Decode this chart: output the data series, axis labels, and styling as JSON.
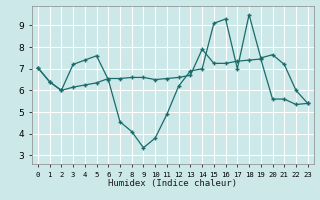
{
  "xlabel": "Humidex (Indice chaleur)",
  "background_color": "#cce8e8",
  "grid_color": "#ffffff",
  "line_color": "#1a6b6b",
  "xlim": [
    -0.5,
    23.5
  ],
  "ylim": [
    2.6,
    9.9
  ],
  "xticks": [
    0,
    1,
    2,
    3,
    4,
    5,
    6,
    7,
    8,
    9,
    10,
    11,
    12,
    13,
    14,
    15,
    16,
    17,
    18,
    19,
    20,
    21,
    22,
    23
  ],
  "yticks": [
    3,
    4,
    5,
    6,
    7,
    8,
    9
  ],
  "line1_x": [
    0,
    1,
    2,
    3,
    4,
    5,
    6,
    7,
    8,
    9,
    10,
    11,
    12,
    13,
    14,
    15,
    16,
    17,
    18,
    19,
    20,
    21,
    22,
    23
  ],
  "line1_y": [
    7.05,
    6.4,
    6.0,
    7.2,
    7.4,
    7.6,
    6.5,
    4.55,
    4.1,
    3.35,
    3.8,
    4.9,
    6.2,
    6.9,
    7.0,
    9.1,
    9.3,
    7.0,
    9.5,
    7.5,
    7.65,
    7.2,
    6.0,
    5.4
  ],
  "line2_x": [
    0,
    1,
    2,
    3,
    4,
    5,
    6,
    7,
    8,
    9,
    10,
    11,
    12,
    13,
    14,
    15,
    16,
    17,
    18,
    19,
    20,
    21,
    22,
    23
  ],
  "line2_y": [
    7.05,
    6.4,
    6.0,
    6.15,
    6.25,
    6.35,
    6.55,
    6.55,
    6.6,
    6.6,
    6.5,
    6.55,
    6.6,
    6.7,
    7.9,
    7.25,
    7.25,
    7.35,
    7.4,
    7.45,
    5.6,
    5.6,
    5.35,
    5.4
  ]
}
